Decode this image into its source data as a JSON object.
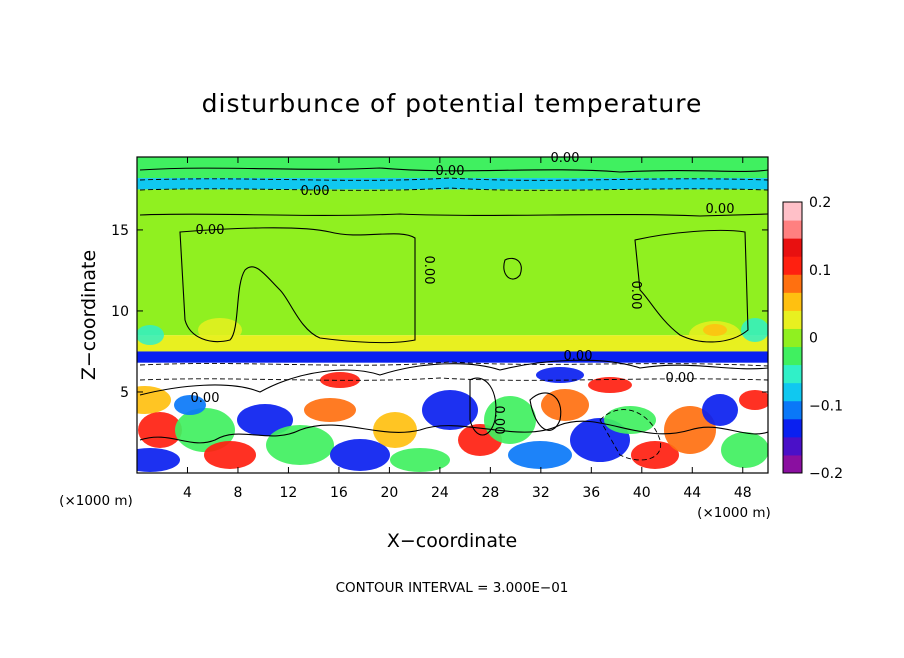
{
  "chart_data": {
    "type": "heatmap",
    "title": "disturbunce of potential temperature",
    "xlabel": "X−coordinate",
    "ylabel": "Z−coordinate",
    "x_unit_left": "(×1000 m)",
    "x_unit_right": "(×1000 m)",
    "xlim": [
      0,
      50
    ],
    "ylim": [
      0,
      19.5
    ],
    "x_ticks": [
      4,
      8,
      12,
      16,
      20,
      24,
      28,
      32,
      36,
      40,
      44,
      48
    ],
    "y_ticks": [
      5,
      10,
      15
    ],
    "colorbar": {
      "range": [
        -0.2,
        0.2
      ],
      "ticks": [
        0.2,
        0.1,
        0,
        -0.1,
        -0.2
      ],
      "tick_labels": [
        "0.2",
        "0.1",
        "0",
        "−0.1",
        "−0.2"
      ],
      "colors": [
        "#8a0fa0",
        "#4a10c8",
        "#0a20f0",
        "#0a78f8",
        "#10c8f0",
        "#30f0c8",
        "#40f060",
        "#90f020",
        "#e8f020",
        "#ffc010",
        "#ff7010",
        "#ff2010",
        "#e81010",
        "#ff8080",
        "#ffc0c8"
      ]
    },
    "contour_labels": [
      "0.00",
      "0.00",
      "0.00",
      "0.00",
      "0.00",
      "0.00",
      "0.00",
      "0.00",
      "0.00",
      "0.00",
      "0.00"
    ],
    "footer": "CONTOUR INTERVAL = 3.000E−01",
    "bands": [
      {
        "z": [
          18.2,
          19.5
        ],
        "value": -0.02
      },
      {
        "z": [
          17.5,
          18.2
        ],
        "value": -0.08
      },
      {
        "z": [
          8.5,
          17.5
        ],
        "value": 0.0
      },
      {
        "z": [
          7.5,
          8.5
        ],
        "value": 0.03
      },
      {
        "z": [
          6.8,
          7.5
        ],
        "value": -0.13
      },
      {
        "z": [
          0,
          6.8
        ],
        "value": "mixed"
      }
    ]
  }
}
